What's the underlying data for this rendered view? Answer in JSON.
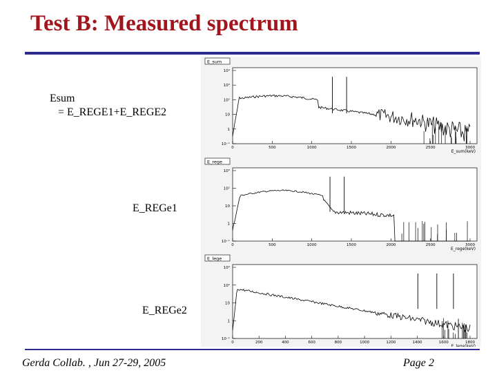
{
  "slide": {
    "title": "Test B: Measured spectrum"
  },
  "labels": {
    "esum_line1": "Esum",
    "esum_line2": "= E_REGE1+E_REGE2",
    "rege1": "E_REGe1",
    "rege2": "E_REGe2"
  },
  "footer": {
    "left": "Gerda Collab. , Jun 27-29, 2005",
    "right": "Page 2"
  },
  "panels": [
    {
      "tab": "E_sum",
      "x_label": "E_sum(keV)",
      "x_ticks": [
        "0",
        "500",
        "1000",
        "1500",
        "2000",
        "2500",
        "3000"
      ],
      "x_range": [
        0,
        3000
      ],
      "y_ticks": [
        "10⁴",
        "10³",
        "10²",
        "10",
        "1",
        "10⁻¹"
      ]
    },
    {
      "tab": "E_rege",
      "x_label": "E_rege(keV)",
      "x_ticks": [
        "0",
        "500",
        "1000",
        "1500",
        "2000",
        "2500",
        "3000"
      ],
      "x_range": [
        0,
        3000
      ],
      "y_ticks": [
        "10³",
        "10²",
        "10",
        "1",
        "10⁻¹"
      ]
    },
    {
      "tab": "E_lege",
      "x_label": "E_lege(keV)",
      "x_ticks": [
        "0",
        "200",
        "400",
        "600",
        "800",
        "1000",
        "1200",
        "1400",
        "1600",
        "1800"
      ],
      "x_range": [
        0,
        1800
      ],
      "y_ticks": [
        "10³",
        "10²",
        "10",
        "1",
        "10⁻¹"
      ]
    }
  ]
}
